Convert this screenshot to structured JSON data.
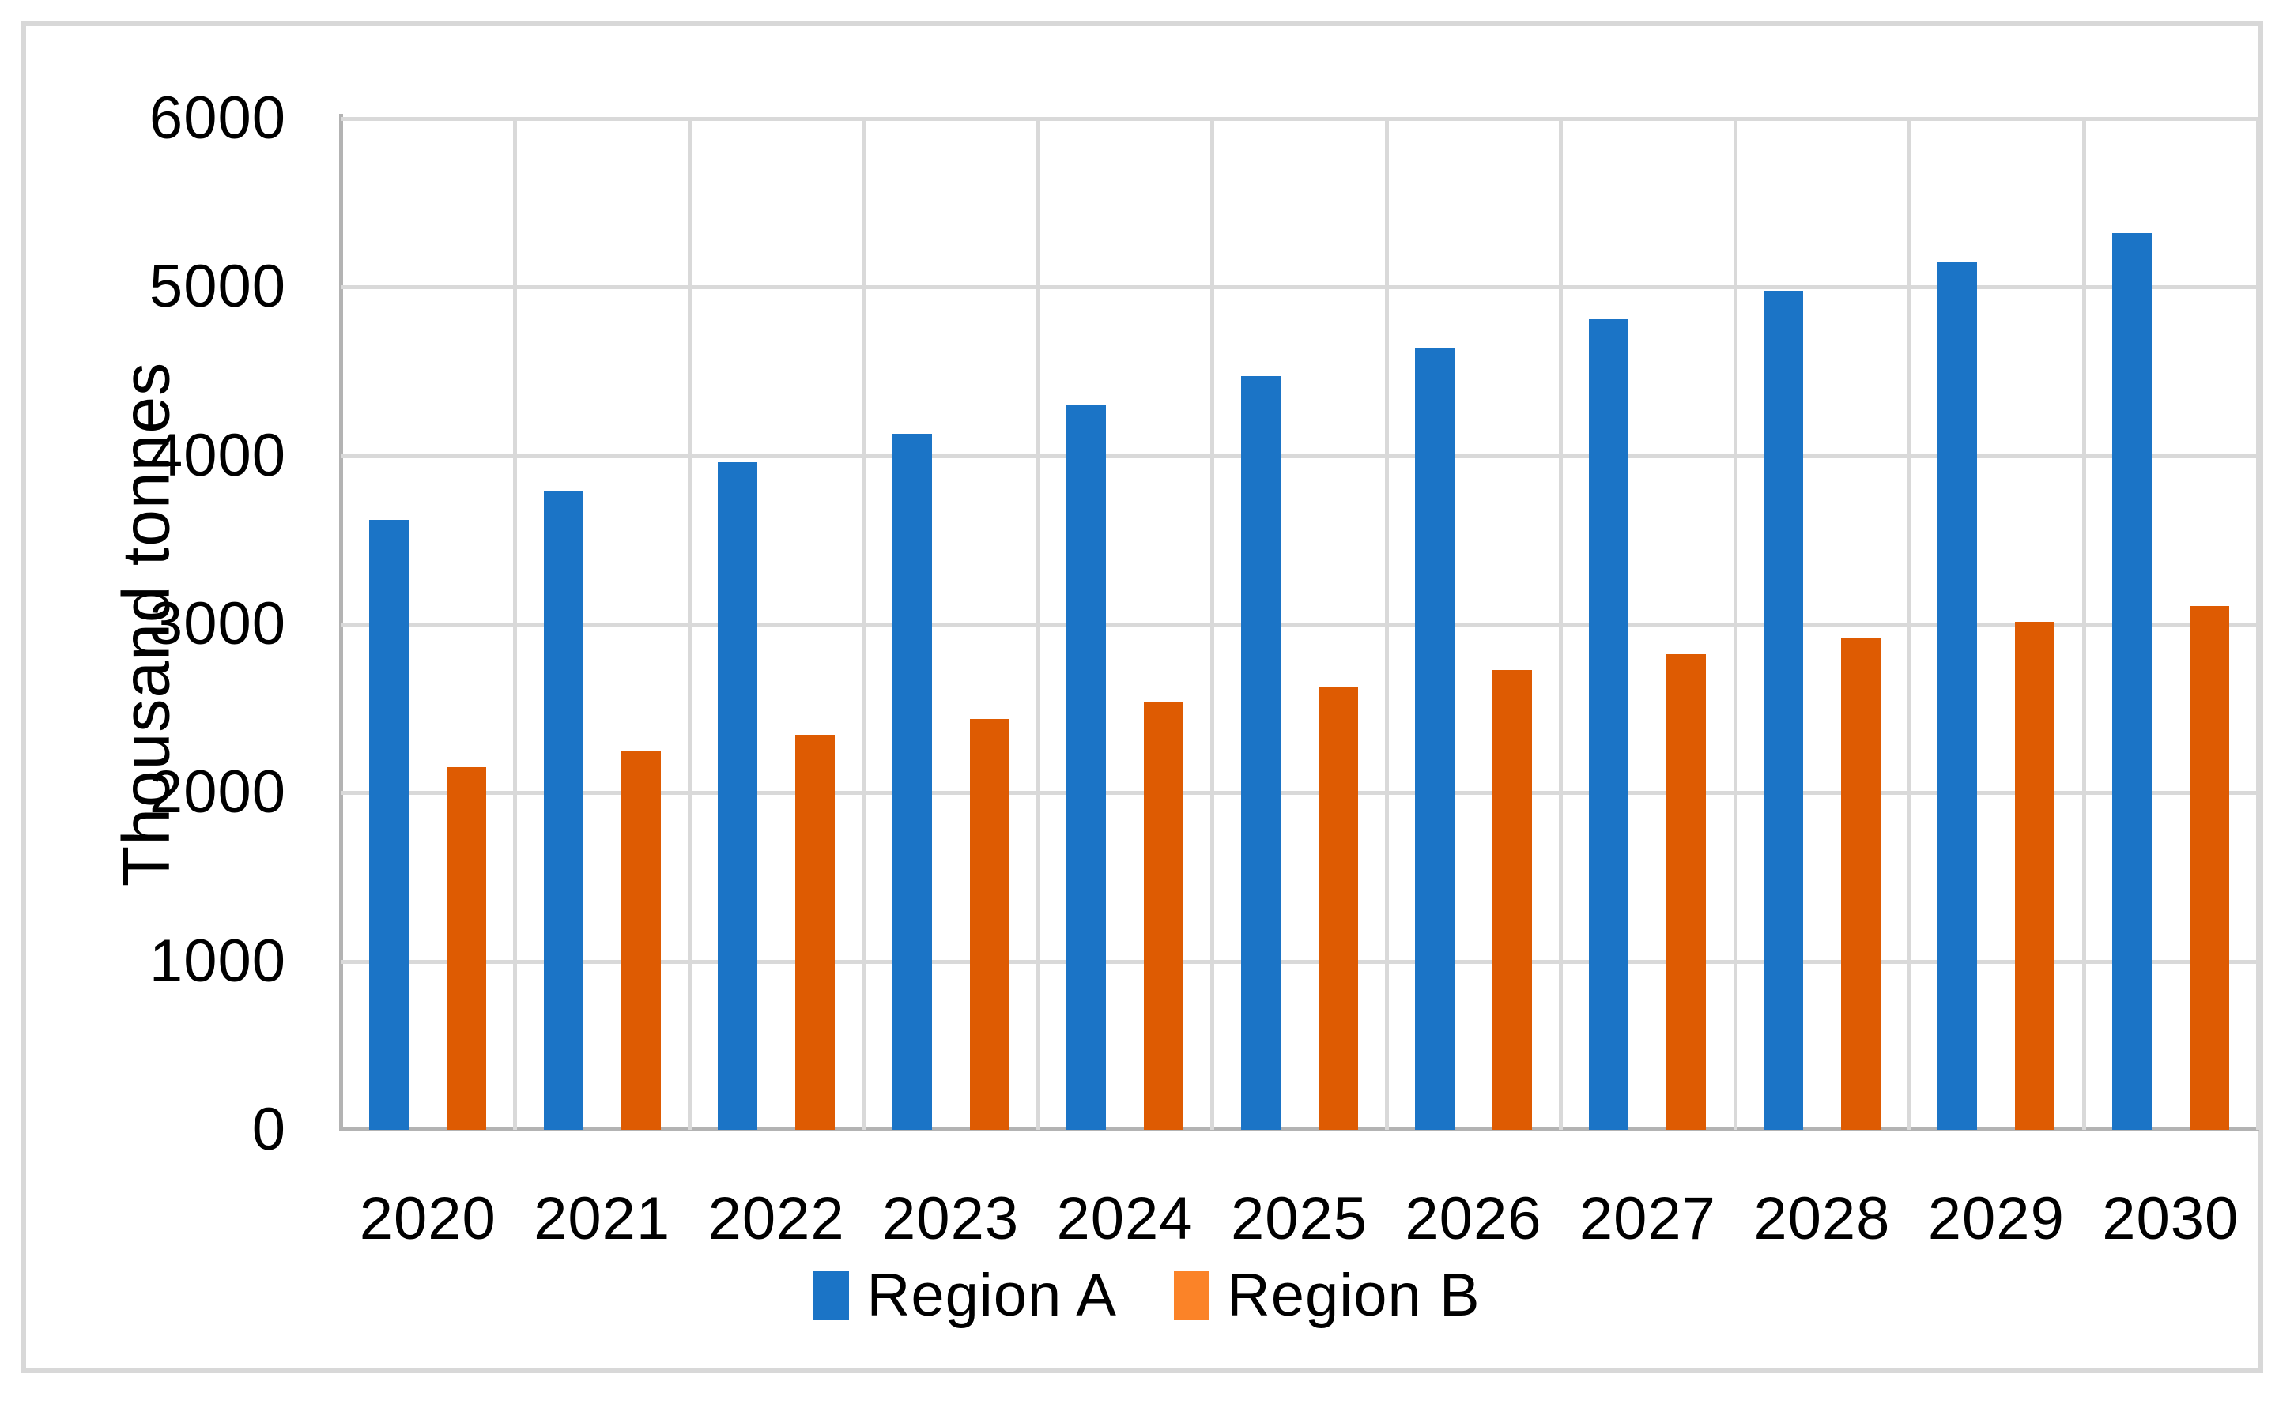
{
  "chart_data": {
    "type": "bar",
    "title": "",
    "categories": [
      "2020",
      "2021",
      "2022",
      "2023",
      "2024",
      "2025",
      "2026",
      "2027",
      "2028",
      "2029",
      "2030"
    ],
    "series": [
      {
        "name": "Region A",
        "color": "#1B74C6",
        "legend_color": "#1B74C6",
        "values": [
          3620,
          3790,
          3960,
          4130,
          4300,
          4470,
          4640,
          4810,
          4980,
          5150,
          5320
        ]
      },
      {
        "name": "Region B",
        "color": "#DE5B02",
        "legend_color": "#FB8328",
        "values": [
          2150,
          2246,
          2342,
          2438,
          2534,
          2630,
          2726,
          2822,
          2918,
          3014,
          3110
        ]
      }
    ],
    "xlabel": "",
    "ylabel": "Thousand tonnes",
    "ylim": [
      0,
      6000
    ],
    "yticks": [
      0,
      1000,
      2000,
      3000,
      4000,
      5000,
      6000
    ],
    "grid": true,
    "gridline_color": "#D9D9D9",
    "axis_line_color": "#B3B3B3",
    "figure_border_color": "#D8D8D8",
    "legend_position": "bottom-center"
  }
}
